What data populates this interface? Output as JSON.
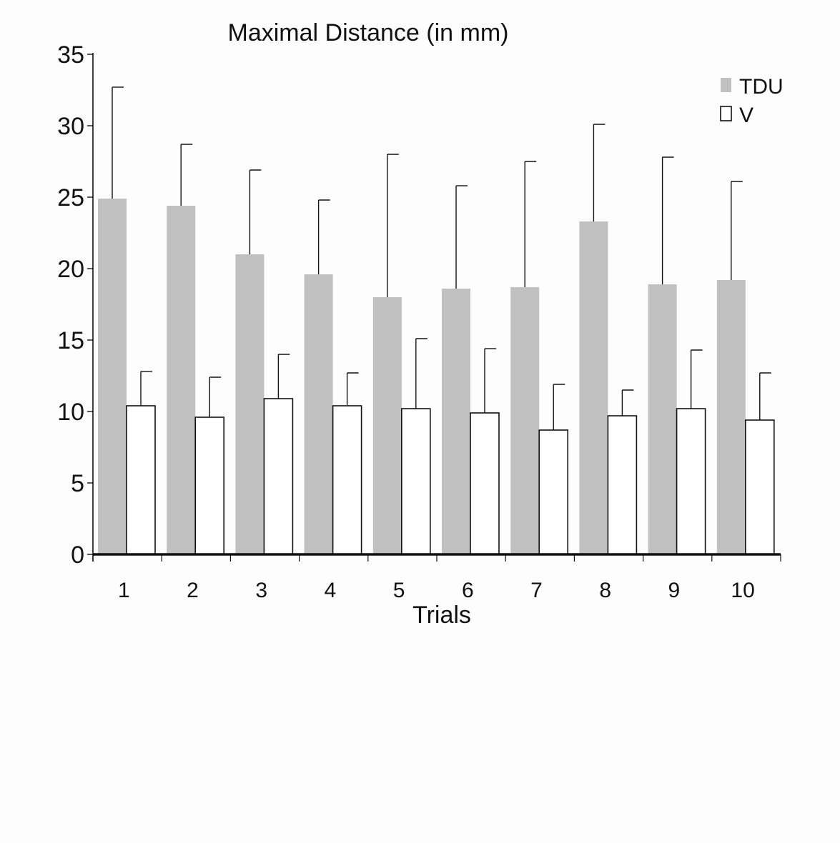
{
  "chart_data": {
    "type": "bar",
    "title": "Maximal Distance  (in mm)",
    "xlabel": "Trials",
    "ylabel": "",
    "ylim": [
      0,
      35
    ],
    "yticks": [
      0,
      5,
      10,
      15,
      20,
      25,
      30,
      35
    ],
    "grid": false,
    "legend_position": "top-right",
    "categories": [
      "1",
      "2",
      "3",
      "4",
      "5",
      "6",
      "7",
      "8",
      "9",
      "10"
    ],
    "series": [
      {
        "name": "TDU",
        "color": "#c0c0c0",
        "values": [
          24.9,
          24.4,
          21.0,
          19.6,
          18.0,
          18.6,
          18.7,
          23.3,
          18.9,
          19.2
        ],
        "error": [
          7.8,
          4.3,
          5.9,
          5.2,
          10.0,
          7.2,
          8.8,
          6.8,
          8.9,
          6.9
        ]
      },
      {
        "name": "V",
        "color": "#ffffff",
        "values": [
          10.4,
          9.6,
          10.9,
          10.4,
          10.2,
          9.9,
          8.7,
          9.7,
          10.2,
          9.4
        ],
        "error": [
          2.4,
          2.8,
          3.1,
          2.3,
          4.9,
          4.5,
          3.2,
          1.8,
          4.1,
          3.3
        ]
      }
    ]
  }
}
